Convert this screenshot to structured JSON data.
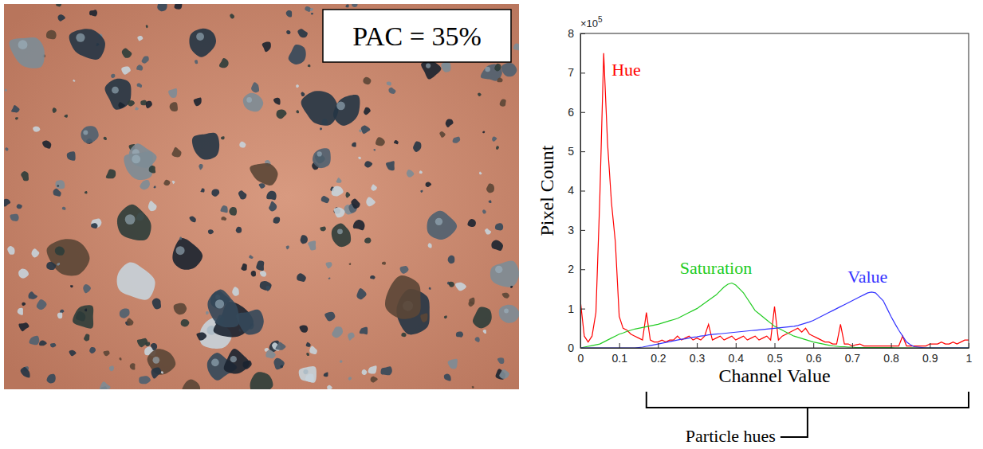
{
  "image": {
    "label": "PAC = 35%"
  },
  "chart_data": {
    "type": "line",
    "x_label": "Channel Value",
    "y_label": "Pixel Count",
    "y_multiplier": {
      "base": "×10",
      "exponent": "5"
    },
    "xlim": [
      0,
      1
    ],
    "ylim": [
      0,
      8
    ],
    "xticks": [
      0,
      0.1,
      0.2,
      0.3,
      0.4,
      0.5,
      0.6,
      0.7,
      0.8,
      0.9,
      1
    ],
    "yticks": [
      0,
      1,
      2,
      3,
      4,
      5,
      6,
      7,
      8
    ],
    "grid": false,
    "annotations": [
      {
        "text": "Particle hues",
        "x_range": [
          0.17,
          1
        ]
      }
    ],
    "x": [
      0,
      0.01,
      0.02,
      0.03,
      0.04,
      0.05,
      0.06,
      0.07,
      0.08,
      0.09,
      0.1,
      0.11,
      0.12,
      0.13,
      0.14,
      0.15,
      0.16,
      0.17,
      0.18,
      0.19,
      0.2,
      0.21,
      0.22,
      0.23,
      0.24,
      0.25,
      0.26,
      0.27,
      0.28,
      0.29,
      0.3,
      0.31,
      0.32,
      0.33,
      0.34,
      0.35,
      0.36,
      0.37,
      0.38,
      0.39,
      0.4,
      0.41,
      0.42,
      0.43,
      0.44,
      0.45,
      0.46,
      0.47,
      0.48,
      0.49,
      0.5,
      0.51,
      0.52,
      0.53,
      0.54,
      0.55,
      0.56,
      0.57,
      0.58,
      0.59,
      0.6,
      0.61,
      0.62,
      0.63,
      0.64,
      0.65,
      0.66,
      0.67,
      0.68,
      0.69,
      0.7,
      0.71,
      0.72,
      0.73,
      0.74,
      0.75,
      0.76,
      0.77,
      0.78,
      0.79,
      0.8,
      0.81,
      0.82,
      0.83,
      0.84,
      0.85,
      0.86,
      0.87,
      0.88,
      0.89,
      0.9,
      0.91,
      0.92,
      0.93,
      0.94,
      0.95,
      0.96,
      0.97,
      0.98,
      0.99,
      1
    ],
    "series": [
      {
        "name": "Hue",
        "color": "#ff0000",
        "values": [
          1.2,
          0.3,
          0.15,
          0.3,
          0.9,
          3.8,
          7.5,
          5.2,
          3.7,
          2.7,
          0.8,
          0.5,
          0.45,
          0.35,
          0.3,
          0.25,
          0.2,
          0.9,
          0.2,
          0.15,
          0.15,
          0.2,
          0.15,
          0.2,
          0.2,
          0.3,
          0.2,
          0.25,
          0.3,
          0.2,
          0.25,
          0.2,
          0.3,
          0.6,
          0.2,
          0.25,
          0.3,
          0.2,
          0.25,
          0.3,
          0.2,
          0.25,
          0.3,
          0.2,
          0.25,
          0.3,
          0.2,
          0.25,
          0.3,
          0.2,
          1.05,
          0.2,
          0.3,
          0.35,
          0.4,
          0.45,
          0.5,
          0.4,
          0.5,
          0.35,
          0.3,
          0.25,
          0.2,
          0.15,
          0.15,
          0.1,
          0.1,
          0.6,
          0.1,
          0.1,
          0.05,
          0.08,
          0.1,
          0.05,
          0.05,
          0.05,
          0.05,
          0.05,
          0.05,
          0.05,
          0.05,
          0.05,
          0.05,
          0.3,
          0.05,
          0.05,
          0.05,
          0.05,
          0.05,
          0.05,
          0.1,
          0.1,
          0.1,
          0.15,
          0.1,
          0.1,
          0.15,
          0.1,
          0.15,
          0.2,
          0.2
        ]
      },
      {
        "name": "Saturation",
        "color": "#22cc22",
        "values": [
          0,
          0.02,
          0.04,
          0.06,
          0.08,
          0.1,
          0.15,
          0.2,
          0.25,
          0.3,
          0.35,
          0.38,
          0.42,
          0.45,
          0.48,
          0.5,
          0.52,
          0.54,
          0.56,
          0.58,
          0.6,
          0.63,
          0.66,
          0.69,
          0.72,
          0.75,
          0.8,
          0.85,
          0.9,
          0.95,
          1.0,
          1.07,
          1.14,
          1.21,
          1.28,
          1.35,
          1.45,
          1.55,
          1.62,
          1.65,
          1.6,
          1.5,
          1.4,
          1.25,
          1.1,
          0.95,
          0.87,
          0.79,
          0.71,
          0.63,
          0.55,
          0.5,
          0.45,
          0.4,
          0.35,
          0.3,
          0.27,
          0.24,
          0.21,
          0.18,
          0.15,
          0.13,
          0.11,
          0.09,
          0.07,
          0.05,
          0.04,
          0.03,
          0.03,
          0.02,
          0.02,
          0.01,
          0.01,
          0.01,
          0.01,
          0.01,
          0.01,
          0.01,
          0.01,
          0.01,
          0.01,
          0,
          0,
          0,
          0,
          0,
          0,
          0,
          0,
          0,
          0,
          0,
          0,
          0,
          0,
          0,
          0,
          0,
          0,
          0,
          0
        ]
      },
      {
        "name": "Value",
        "color": "#3333ff",
        "values": [
          0,
          0,
          0,
          0,
          0,
          0,
          0,
          0,
          0,
          0,
          0,
          0,
          0,
          0,
          0,
          0.01,
          0.02,
          0.04,
          0.06,
          0.08,
          0.1,
          0.12,
          0.14,
          0.16,
          0.18,
          0.2,
          0.22,
          0.23,
          0.25,
          0.27,
          0.28,
          0.3,
          0.31,
          0.33,
          0.34,
          0.35,
          0.36,
          0.37,
          0.38,
          0.39,
          0.4,
          0.41,
          0.42,
          0.43,
          0.44,
          0.45,
          0.46,
          0.47,
          0.48,
          0.49,
          0.5,
          0.51,
          0.52,
          0.53,
          0.54,
          0.55,
          0.57,
          0.6,
          0.63,
          0.66,
          0.7,
          0.75,
          0.8,
          0.85,
          0.9,
          0.95,
          1.0,
          1.05,
          1.1,
          1.15,
          1.2,
          1.25,
          1.3,
          1.35,
          1.4,
          1.42,
          1.4,
          1.3,
          1.2,
          1.0,
          0.8,
          0.62,
          0.45,
          0.3,
          0.15,
          0.08,
          0.03,
          0.02,
          0.01,
          0,
          0,
          0,
          0,
          0,
          0,
          0,
          0,
          0,
          0,
          0,
          0
        ]
      }
    ]
  }
}
